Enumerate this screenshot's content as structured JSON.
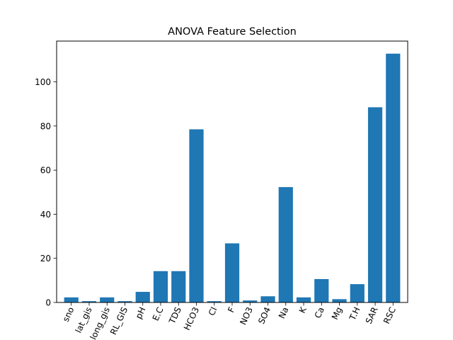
{
  "chart_data": {
    "type": "bar",
    "title": "ANOVA Feature Selection",
    "xlabel": "",
    "ylabel": "",
    "categories": [
      "sno",
      "lat_gis",
      "long_gis",
      "RL_GIS",
      "pH",
      "E.C",
      "TDS",
      "HCO3",
      "Cl",
      "F",
      "NO3",
      "SO4",
      "Na",
      "K",
      "Ca",
      "Mg",
      "T.H",
      "SAR",
      "RSC"
    ],
    "values": [
      2.3,
      0.6,
      2.3,
      0.6,
      4.8,
      14.2,
      14.2,
      78.5,
      0.6,
      26.8,
      0.9,
      2.8,
      52.3,
      2.3,
      10.6,
      1.5,
      8.3,
      88.5,
      112.8
    ],
    "ylim": [
      0,
      118.5
    ],
    "yticks": [
      0,
      20,
      40,
      60,
      80,
      100
    ],
    "bar_color": "#1f77b4",
    "grid": false,
    "x_tick_rotation_deg": 65
  }
}
